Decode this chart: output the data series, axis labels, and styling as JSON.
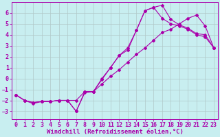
{
  "background_color": "#c8eef0",
  "grid_color": "#b0c8c8",
  "line_color": "#aa00aa",
  "marker": "D",
  "markersize": 2.0,
  "linewidth": 0.8,
  "xlabel": "Windchill (Refroidissement éolien,°C)",
  "xlim": [
    -0.5,
    23.5
  ],
  "ylim": [
    -3.7,
    7.0
  ],
  "xticks": [
    0,
    1,
    2,
    3,
    4,
    5,
    6,
    7,
    8,
    9,
    10,
    11,
    12,
    13,
    14,
    15,
    16,
    17,
    18,
    19,
    20,
    21,
    22,
    23
  ],
  "yticks": [
    -3,
    -2,
    -1,
    0,
    1,
    2,
    3,
    4,
    5,
    6
  ],
  "series": [
    {
      "x": [
        0,
        1,
        2,
        3,
        4,
        5,
        6,
        7,
        8,
        9,
        10,
        11,
        12,
        13,
        14,
        15,
        16,
        17,
        18,
        19,
        20,
        21,
        22,
        23
      ],
      "y": [
        -1.5,
        -2.0,
        -2.2,
        -2.1,
        -2.1,
        -2.0,
        -2.0,
        -2.0,
        -1.2,
        -1.2,
        -0.5,
        0.2,
        0.8,
        1.5,
        2.2,
        2.8,
        3.5,
        4.2,
        4.5,
        5.0,
        5.5,
        5.8,
        4.8,
        2.8
      ]
    },
    {
      "x": [
        0,
        1,
        2,
        3,
        4,
        5,
        6,
        7,
        8,
        9,
        10,
        11,
        12,
        13,
        14,
        15,
        16,
        17,
        18,
        19,
        20,
        21,
        22,
        23
      ],
      "y": [
        -1.5,
        -2.0,
        -2.2,
        -2.1,
        -2.1,
        -2.0,
        -2.0,
        -3.0,
        -1.3,
        -1.2,
        -0.1,
        1.0,
        2.1,
        2.8,
        4.4,
        6.2,
        6.5,
        5.5,
        5.0,
        4.8,
        4.5,
        4.0,
        3.8,
        2.8
      ]
    },
    {
      "x": [
        0,
        1,
        2,
        3,
        4,
        5,
        6,
        7,
        8,
        9,
        10,
        11,
        12,
        13,
        14,
        15,
        16,
        17,
        18,
        19,
        20,
        21,
        22,
        23
      ],
      "y": [
        -1.5,
        -2.0,
        -2.3,
        -2.1,
        -2.1,
        -2.0,
        -2.0,
        -3.0,
        -1.2,
        -1.2,
        0.0,
        1.0,
        2.1,
        2.6,
        4.4,
        6.2,
        6.5,
        6.7,
        5.4,
        4.9,
        4.6,
        4.1,
        4.0,
        2.8
      ]
    }
  ],
  "tick_fontsize": 6,
  "label_fontsize": 6.5,
  "font_family": "monospace"
}
